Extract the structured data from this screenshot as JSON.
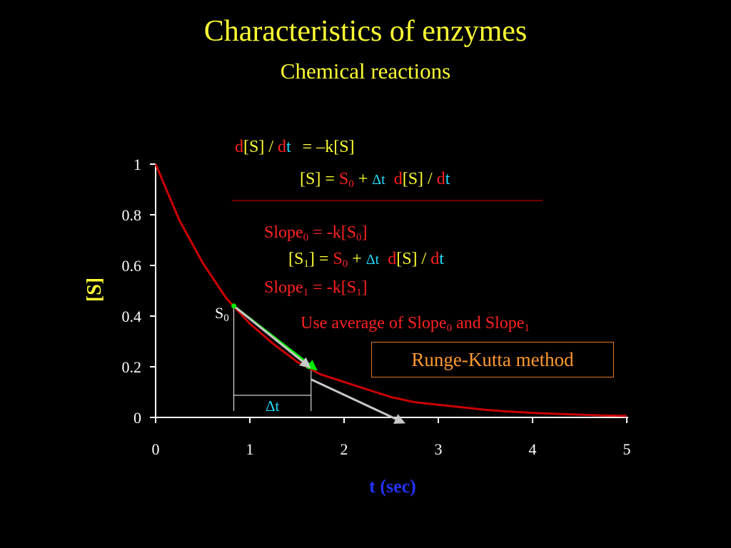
{
  "slide": {
    "title": "Characteristics of enzymes",
    "subtitle": "Chemical reactions"
  },
  "equations": {
    "rate_lhs_d1": "d",
    "rate_lhs_S": "[S] / ",
    "rate_lhs_d2": "d",
    "rate_lhs_t": "t",
    "rate_rhs": "=  –k[S]",
    "euler_lhs": "[S] = ",
    "euler_S0": "S",
    "euler_S0_sub": "0",
    "euler_plus": " + ",
    "euler_dt": "Δt",
    "euler_d1": "d",
    "euler_S": "[S] / ",
    "euler_d2": "d",
    "euler_t": "t",
    "slope0_text": "Slope",
    "slope0_sub": "0",
    "slope0_rhs": " = -k[S",
    "slope0_rhs_sub": "0",
    "slope0_close": "]",
    "s1_open": "[S",
    "s1_sub": "1",
    "s1_close": "] = ",
    "s1_S0": "S",
    "s1_S0_sub": "0",
    "s1_plus": " + ",
    "s1_dt": "Δt",
    "s1_d1": "d",
    "s1_S": "[S] / ",
    "s1_d2": "d",
    "s1_t": "t",
    "slope1_text": "Slope",
    "slope1_sub": "1",
    "slope1_rhs": " = -k[S",
    "slope1_rhs_sub": "1",
    "slope1_close": "]",
    "avg_text1": "Use average of Slope",
    "avg_sub0": "0",
    "avg_text2": " and Slope",
    "avg_sub1": "1"
  },
  "method_box": "Runge-Kutta method",
  "annotations": {
    "s0_label": "S",
    "s0_sub": "0",
    "dt_label": "Δt"
  },
  "colors": {
    "curve": "#cc0000",
    "axis": "#ffffff",
    "tangent_green": "#00ee00",
    "tangent_gray": "#c8c8c8",
    "title": "#ffff33",
    "xlabel": "#2233ff"
  },
  "chart_data": {
    "type": "line",
    "title": "",
    "xlabel": "t (sec)",
    "ylabel": "[S]",
    "xlim": [
      0,
      5
    ],
    "ylim": [
      0,
      1
    ],
    "xticks": [
      "0",
      "1",
      "2",
      "3",
      "4",
      "5"
    ],
    "yticks": [
      "0",
      "0.2",
      "0.4",
      "0.6",
      "0.8",
      "1"
    ],
    "grid": false,
    "series": [
      {
        "x": [
          0,
          0.25,
          0.5,
          0.75,
          1.0,
          1.25,
          1.5,
          1.75,
          2.0,
          2.25,
          2.5,
          2.75,
          3.0,
          3.25,
          3.5,
          3.75,
          4.0,
          4.25,
          4.5,
          4.75,
          5.0
        ],
        "values": [
          1.0,
          0.78,
          0.61,
          0.47,
          0.37,
          0.29,
          0.22,
          0.17,
          0.14,
          0.11,
          0.08,
          0.06,
          0.05,
          0.04,
          0.03,
          0.023,
          0.018,
          0.014,
          0.011,
          0.008,
          0.006
        ]
      }
    ],
    "tangents": [
      {
        "name": "slope0",
        "from": [
          0.83,
          0.44
        ],
        "to": [
          1.7,
          0.19
        ]
      },
      {
        "name": "slope1",
        "from": [
          1.65,
          0.15
        ],
        "to": [
          2.63,
          -0.02
        ]
      },
      {
        "name": "euler_step",
        "from": [
          0.83,
          0.44
        ],
        "to": [
          1.63,
          0.2
        ]
      }
    ],
    "delta_t": {
      "x0": 0.83,
      "x1": 1.65
    }
  }
}
